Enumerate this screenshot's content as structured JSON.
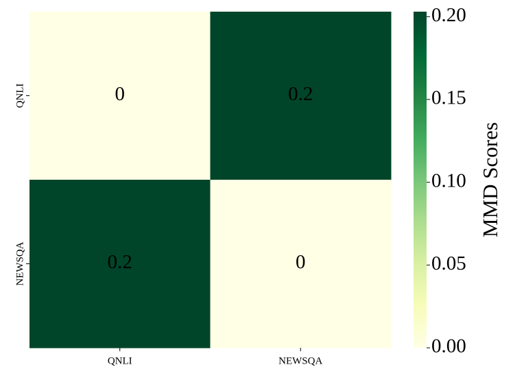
{
  "chart_data": {
    "type": "heatmap",
    "x_categories": [
      "QNLI",
      "NEWSQA"
    ],
    "y_categories": [
      "QNLI",
      "NEWSQA"
    ],
    "values": [
      [
        0,
        0.203
      ],
      [
        0.203,
        0
      ]
    ],
    "value_labels": [
      [
        "0",
        "0.2"
      ],
      [
        "0.2",
        "0"
      ]
    ],
    "zlim": [
      0,
      0.203
    ],
    "zticks": [
      {
        "value": 0,
        "label": "0.00"
      },
      {
        "value": 0.05,
        "label": "0.05"
      },
      {
        "value": 0.1,
        "label": "0.10"
      },
      {
        "value": 0.15,
        "label": "0.15"
      },
      {
        "value": 0.2,
        "label": "0.20"
      }
    ],
    "colorbar_label": "MMD Scores",
    "colors": [
      "#ffffe5",
      "#f7fcb9",
      "#d9f0a3",
      "#addd8e",
      "#78c679",
      "#41ab5d",
      "#238443",
      "#006837",
      "#004529"
    ]
  }
}
